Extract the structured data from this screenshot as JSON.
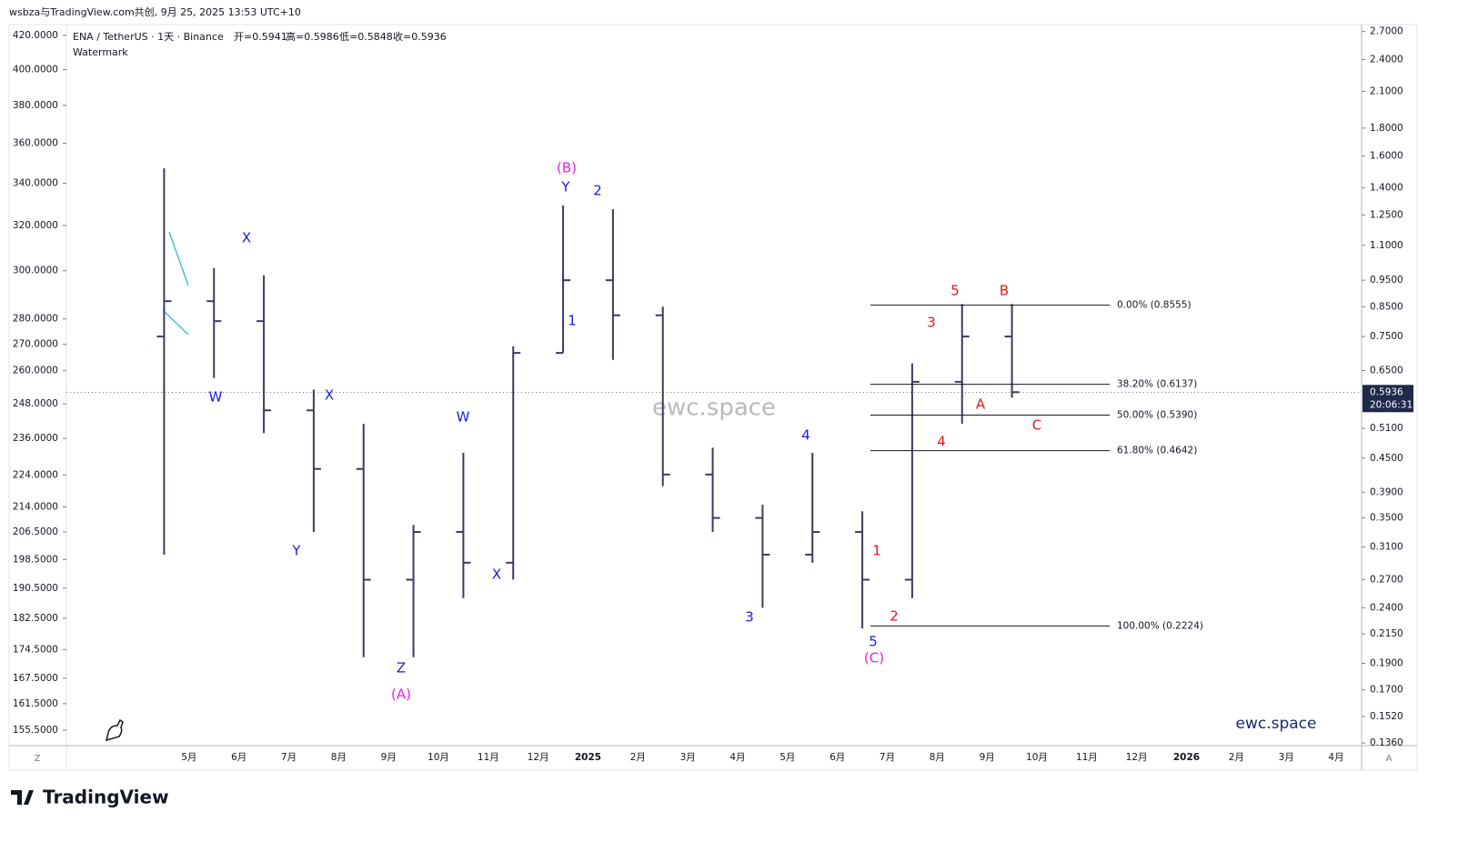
{
  "header": "wsbza与TradingView.com共创, 9月 25, 2025 13:53 UTC+10",
  "legend": {
    "symbol": "ENA / TetherUS · 1天 · Binance",
    "open": "开=0.5941",
    "high": "高=0.5986",
    "low": "低=0.5848",
    "close": "收=0.5936",
    "indicator": "Watermark"
  },
  "watermark": "ewc.space",
  "brand": "ewc.space",
  "logo": "TradingView",
  "corner_left": "Z",
  "corner_right": "A",
  "countdown": "20:06:31",
  "chart_data": {
    "type": "ohlc",
    "log_scale": true,
    "color": "#3d3b5e",
    "categories": [
      null,
      "5月",
      "6月",
      "7月",
      "8月",
      "9月",
      "10月",
      "11月",
      "12月",
      "2025",
      "2月",
      "3月",
      "4月",
      "5月",
      "6月",
      "7月",
      "8月",
      "9月",
      "10月",
      "11月",
      "12月",
      "2026",
      "2月",
      "3月",
      "4月"
    ],
    "open": [
      0.75,
      0.87,
      0.8,
      0.55,
      0.43,
      0.27,
      0.33,
      0.29,
      0.7,
      0.95,
      0.82,
      0.42,
      0.35,
      0.3,
      0.33,
      0.27,
      0.62,
      0.75,
      null,
      null,
      null,
      null,
      null,
      null,
      null
    ],
    "high": [
      1.52,
      1.0,
      0.97,
      0.6,
      0.52,
      0.34,
      0.46,
      0.72,
      1.3,
      1.28,
      0.85,
      0.47,
      0.37,
      0.46,
      0.36,
      0.67,
      0.86,
      0.86,
      null,
      null,
      null,
      null,
      null,
      null,
      null
    ],
    "low": [
      0.3,
      0.63,
      0.5,
      0.33,
      0.195,
      0.195,
      0.25,
      0.27,
      0.7,
      0.68,
      0.4,
      0.33,
      0.24,
      0.29,
      0.22,
      0.25,
      0.52,
      0.58,
      null,
      null,
      null,
      null,
      null,
      null,
      null
    ],
    "close": [
      0.87,
      0.8,
      0.55,
      0.43,
      0.27,
      0.33,
      0.29,
      0.7,
      0.95,
      0.82,
      0.42,
      0.35,
      0.3,
      0.33,
      0.27,
      0.62,
      0.75,
      0.5936,
      null,
      null,
      null,
      null,
      null,
      null,
      null
    ],
    "last_price": 0.5936,
    "ylim": [
      0.1345,
      2.77
    ],
    "yticks": [
      {
        "value": 2.7,
        "label": "2.7000"
      },
      {
        "value": 2.4,
        "label": "2.4000"
      },
      {
        "value": 2.1,
        "label": "2.1000"
      },
      {
        "value": 1.8,
        "label": "1.8000"
      },
      {
        "value": 1.6,
        "label": "1.6000"
      },
      {
        "value": 1.4,
        "label": "1.4000"
      },
      {
        "value": 1.25,
        "label": "1.2500"
      },
      {
        "value": 1.1,
        "label": "1.1000"
      },
      {
        "value": 0.95,
        "label": "0.9500"
      },
      {
        "value": 0.85,
        "label": "0.8500"
      },
      {
        "value": 0.75,
        "label": "0.7500"
      },
      {
        "value": 0.65,
        "label": "0.6500"
      },
      {
        "value": 0.51,
        "label": "0.5100"
      },
      {
        "value": 0.45,
        "label": "0.4500"
      },
      {
        "value": 0.39,
        "label": "0.3900"
      },
      {
        "value": 0.35,
        "label": "0.3500"
      },
      {
        "value": 0.31,
        "label": "0.3100"
      },
      {
        "value": 0.27,
        "label": "0.2700"
      },
      {
        "value": 0.24,
        "label": "0.2400"
      },
      {
        "value": 0.215,
        "label": "0.2150"
      },
      {
        "value": 0.19,
        "label": "0.1900"
      },
      {
        "value": 0.17,
        "label": "0.1700"
      },
      {
        "value": 0.152,
        "label": "0.1520"
      },
      {
        "value": 0.136,
        "label": "0.1360"
      }
    ],
    "y2lim": [
      152.1,
      426
    ],
    "y2ticks": [
      {
        "value": 420,
        "label": "420.0000"
      },
      {
        "value": 400,
        "label": "400.0000"
      },
      {
        "value": 380,
        "label": "380.0000"
      },
      {
        "value": 360,
        "label": "360.0000"
      },
      {
        "value": 340,
        "label": "340.0000"
      },
      {
        "value": 320,
        "label": "320.0000"
      },
      {
        "value": 300,
        "label": "300.0000"
      },
      {
        "value": 280,
        "label": "280.0000"
      },
      {
        "value": 270,
        "label": "270.0000"
      },
      {
        "value": 260,
        "label": "260.0000"
      },
      {
        "value": 248,
        "label": "248.0000"
      },
      {
        "value": 236,
        "label": "236.0000"
      },
      {
        "value": 224,
        "label": "224.0000"
      },
      {
        "value": 214,
        "label": "214.0000"
      },
      {
        "value": 206.5,
        "label": "206.5000"
      },
      {
        "value": 198.5,
        "label": "198.5000"
      },
      {
        "value": 190.5,
        "label": "190.5000"
      },
      {
        "value": 182.5,
        "label": "182.5000"
      },
      {
        "value": 174.5,
        "label": "174.5000"
      },
      {
        "value": 167.5,
        "label": "167.5000"
      },
      {
        "value": 161.5,
        "label": "161.5000"
      },
      {
        "value": 155.5,
        "label": "155.5000"
      }
    ],
    "fib_levels": [
      {
        "value": 0.8555,
        "label": "0.00% (0.8555)"
      },
      {
        "value": 0.6137,
        "label": "38.20% (0.6137)"
      },
      {
        "value": 0.539,
        "label": "50.00% (0.5390)"
      },
      {
        "value": 0.4642,
        "label": "61.80% (0.4642)"
      },
      {
        "value": 0.2224,
        "label": "100.00% (0.2224)"
      }
    ],
    "wave_labels": [
      {
        "text": "X",
        "color": "#1a1ae6"
      },
      {
        "text": "W",
        "color": "#1a1ae6"
      },
      {
        "text": "X",
        "color": "#1a1ae6"
      },
      {
        "text": "Y",
        "color": "#1a1ae6"
      },
      {
        "text": "W",
        "color": "#1a1ae6"
      },
      {
        "text": "X",
        "color": "#1a1ae6"
      },
      {
        "text": "Z",
        "color": "#1a1ae6"
      },
      {
        "text": "Y",
        "color": "#1a1ae6"
      },
      {
        "text": "2",
        "color": "#1a1ae6"
      },
      {
        "text": "1",
        "color": "#1a1ae6"
      },
      {
        "text": "4",
        "color": "#1a1ae6"
      },
      {
        "text": "3",
        "color": "#1a1ae6"
      },
      {
        "text": "5",
        "color": "#1a1ae6"
      },
      {
        "text": "(B)",
        "color": "#e91ee0"
      },
      {
        "text": "(A)",
        "color": "#e91ee0"
      },
      {
        "text": "(C)",
        "color": "#e91ee0"
      },
      {
        "text": "1",
        "color": "#e8141b"
      },
      {
        "text": "2",
        "color": "#e8141b"
      },
      {
        "text": "3",
        "color": "#e8141b"
      },
      {
        "text": "4",
        "color": "#e8141b"
      },
      {
        "text": "5",
        "color": "#e8141b"
      },
      {
        "text": "B",
        "color": "#e8141b"
      },
      {
        "text": "A",
        "color": "#e8141b"
      },
      {
        "text": "C",
        "color": "#e8141b"
      }
    ]
  }
}
